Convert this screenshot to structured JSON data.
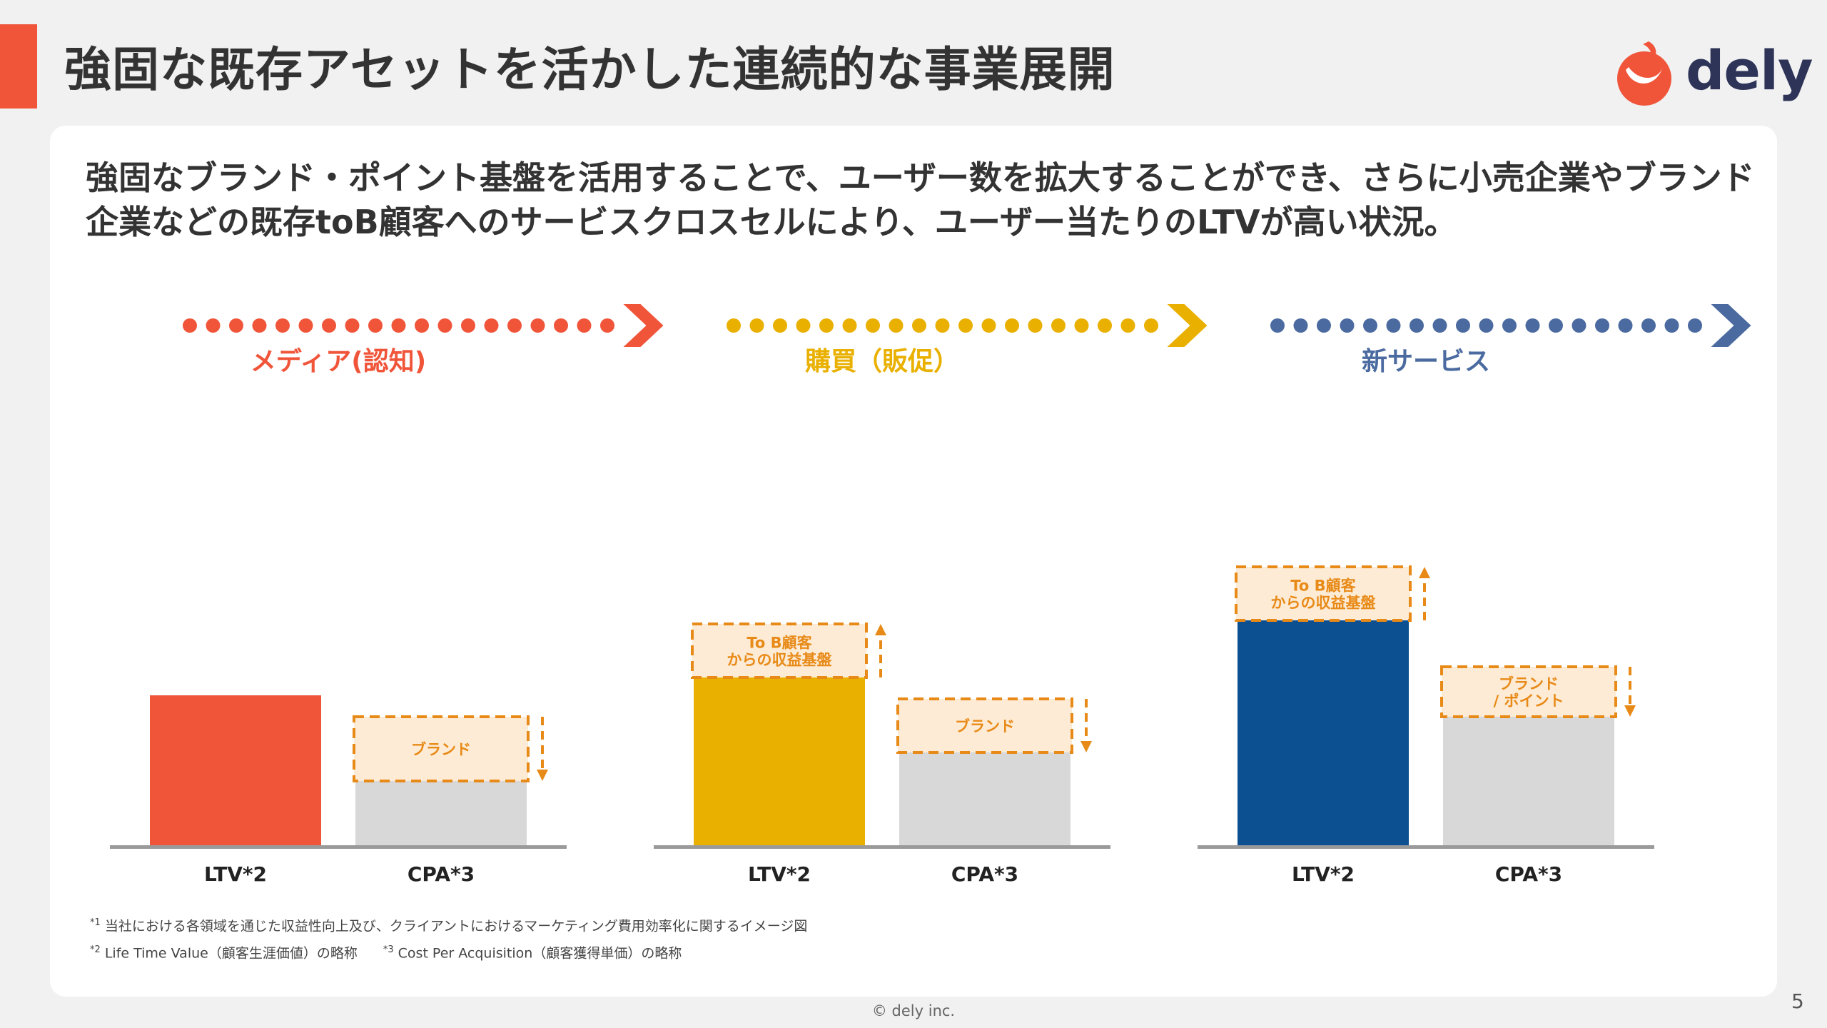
{
  "header": {
    "title": "強固な既存アセットを活かした連続的な事業展開",
    "logo_text": "dely",
    "accent_color": "#f0553a"
  },
  "lead": {
    "text": "強固なブランド・ポイント基盤を活用することで、ユーザー数を拡大することができ、さらに小売企業やブランド企業などの既存toB顧客へのサービスクロスセルにより、ユーザー当たりのLTVが高い状況。"
  },
  "chart_data": [
    {
      "type": "bar",
      "stage_label": "メディア(認知)",
      "color": "#f0553a",
      "categories": [
        "LTV*2",
        "CPA*3"
      ],
      "ylim": [
        0,
        100
      ],
      "bars": [
        {
          "category": "LTV*2",
          "value": 42,
          "color": "#f0553a",
          "annotation": null
        },
        {
          "category": "CPA*3",
          "value": 18,
          "color": "#d8d8d8",
          "annotation": {
            "lines": [
              "ブランド"
            ],
            "direction": "down",
            "value": 18
          }
        }
      ]
    },
    {
      "type": "bar",
      "stage_label": "購買（販促）",
      "color": "#e9b000",
      "categories": [
        "LTV*2",
        "CPA*3"
      ],
      "ylim": [
        0,
        100
      ],
      "bars": [
        {
          "category": "LTV*2",
          "value": 47,
          "color": "#eab000",
          "annotation": {
            "lines": [
              "To B顧客",
              "からの収益基盤"
            ],
            "direction": "up",
            "value": 15
          }
        },
        {
          "category": "CPA*3",
          "value": 26,
          "color": "#d8d8d8",
          "annotation": {
            "lines": [
              "ブランド"
            ],
            "direction": "down",
            "value": 15
          }
        }
      ]
    },
    {
      "type": "bar",
      "stage_label": "新サービス",
      "color": "#4a6aa0",
      "categories": [
        "LTV*2",
        "CPA*3"
      ],
      "ylim": [
        0,
        100
      ],
      "bars": [
        {
          "category": "LTV*2",
          "value": 63,
          "color": "#0d5091",
          "annotation": {
            "lines": [
              "To B顧客",
              "からの収益基盤"
            ],
            "direction": "up",
            "value": 15
          }
        },
        {
          "category": "CPA*3",
          "value": 36,
          "color": "#d8d8d8",
          "annotation": {
            "lines": [
              "ブランド",
              "/ ポイント"
            ],
            "direction": "down",
            "value": 14
          }
        }
      ]
    }
  ],
  "footnotes": {
    "note1_mark": "*1",
    "note1": "当社における各領域を通じた収益性向上及び、クライアントにおけるマーケティング費用効率化に関するイメージ図",
    "note2_mark": "*2",
    "note2": "Life Time Value（顧客生涯価値）の略称",
    "note3_mark": "*3",
    "note3": "Cost Per Acquisition（顧客獲得単価）の略称"
  },
  "footer": {
    "copyright": "© dely inc.",
    "page_number": "5"
  }
}
